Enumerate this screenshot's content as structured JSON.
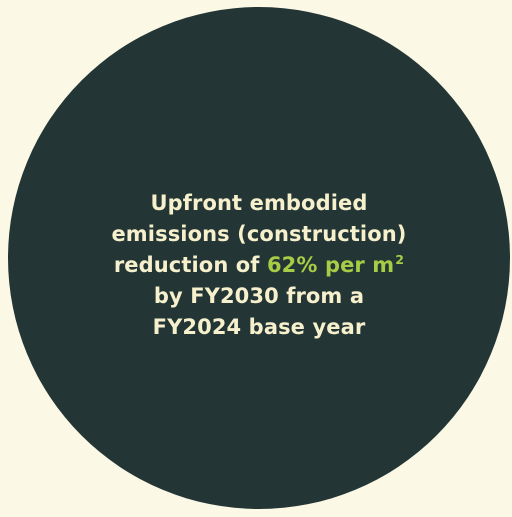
{
  "colors": {
    "background": "#FBF8E6",
    "circle": "#233635",
    "text": "#F7F0CD",
    "highlight": "#A8CC45"
  },
  "statement": {
    "line1": "Upfront embodied",
    "line2": "emissions (construction)",
    "line3_prefix": "reduction of",
    "highlight_main": "62% per m",
    "highlight_superscript": "2",
    "line4": "by FY2030 from a",
    "line5": "FY2024 base year"
  }
}
